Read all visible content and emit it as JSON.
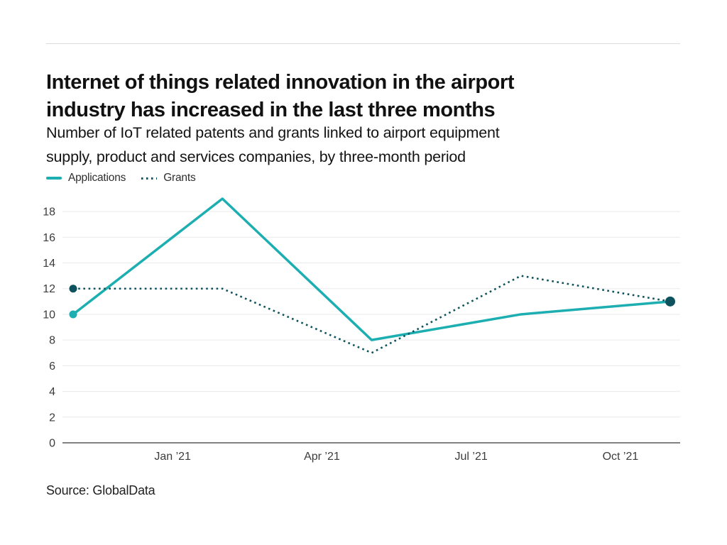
{
  "header": {
    "title_line1": "Internet of things related innovation in the airport",
    "title_line2": "industry has increased in the last three months",
    "subtitle_line1": "Number of IoT related patents and grants linked to airport equipment",
    "subtitle_line2": "supply, product and services companies, by three-month period"
  },
  "footer": {
    "source": "Source: GlobalData"
  },
  "colors": {
    "applications": "#1caeb0",
    "grants": "#0d525c",
    "gridline": "#eaeaea",
    "zero_axis": "#808080",
    "tick_text": "#3c3c3c",
    "divider": "#dcdcdc"
  },
  "chart_data": {
    "type": "line",
    "title": "Internet of things related innovation in the airport industry has increased in the last three months",
    "subtitle": "Number of IoT related patents and grants linked to airport equipment supply, product and services companies, by three-month period",
    "xlabel": "",
    "ylabel": "",
    "grid": true,
    "legend_position": "top-left",
    "ylim": [
      0,
      19
    ],
    "yticks": [
      0,
      2,
      4,
      6,
      8,
      10,
      12,
      14,
      16,
      18
    ],
    "x_points_months": [
      0,
      3,
      6,
      9,
      12
    ],
    "x_ticks_months": [
      2,
      5,
      8,
      11
    ],
    "x_tick_labels": [
      "Jan ’21",
      "Apr ’21",
      "Jul ’21",
      "Oct ’21"
    ],
    "series": [
      {
        "name": "Applications",
        "color": "#1caeb0",
        "line_style": "solid",
        "values": [
          10,
          19,
          8,
          10,
          11
        ],
        "markers": [
          {
            "index": 0,
            "r": 5.5
          }
        ]
      },
      {
        "name": "Grants",
        "color": "#0d525c",
        "line_style": "dotted",
        "values": [
          12,
          12,
          7,
          13,
          11
        ],
        "markers": [
          {
            "index": 0,
            "r": 5.5
          },
          {
            "index": 4,
            "r": 7
          }
        ]
      }
    ]
  }
}
